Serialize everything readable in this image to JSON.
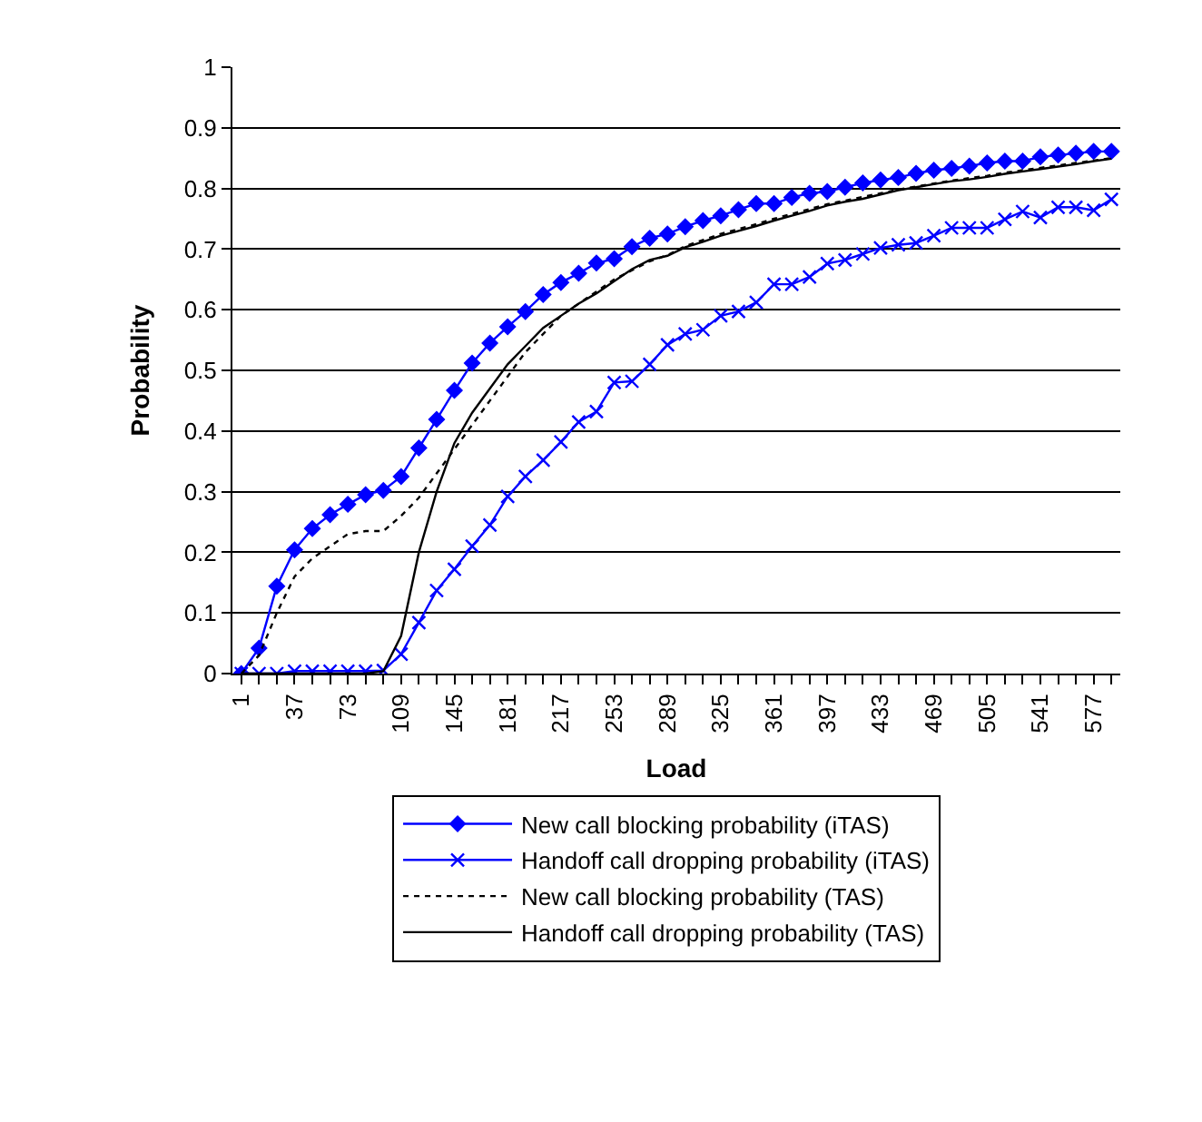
{
  "chart_data": {
    "type": "line",
    "xlabel": "Load",
    "ylabel": "Probability",
    "categories": [
      "1",
      null,
      null,
      "37",
      null,
      null,
      "73",
      null,
      null,
      "109",
      null,
      null,
      "145",
      null,
      null,
      "181",
      null,
      null,
      "217",
      null,
      null,
      "253",
      null,
      null,
      "289",
      null,
      null,
      "325",
      null,
      null,
      "361",
      null,
      null,
      "397",
      null,
      null,
      "433",
      null,
      null,
      "469",
      null,
      null,
      "505",
      null,
      null,
      "541",
      null,
      null,
      "577",
      null
    ],
    "ylim": [
      0,
      1
    ],
    "yticks": [
      0,
      0.1,
      0.2,
      0.3,
      0.4,
      0.5,
      0.6,
      0.7,
      0.8,
      0.9,
      1
    ],
    "grid": "y",
    "legend": "bottom",
    "series": [
      {
        "name": "New call blocking probability (iTAS)",
        "color": "#0000ff",
        "marker": "diamond",
        "line_style": "solid",
        "values": [
          0,
          0.042,
          0.144,
          0.204,
          0.239,
          0.262,
          0.279,
          0.295,
          0.302,
          0.325,
          0.372,
          0.419,
          0.467,
          0.512,
          0.545,
          0.572,
          0.597,
          0.625,
          0.645,
          0.66,
          0.677,
          0.684,
          0.704,
          0.718,
          0.725,
          0.737,
          0.747,
          0.755,
          0.765,
          0.775,
          0.775,
          0.785,
          0.792,
          0.795,
          0.802,
          0.809,
          0.814,
          0.818,
          0.825,
          0.83,
          0.833,
          0.837,
          0.842,
          0.845,
          0.845,
          0.852,
          0.855,
          0.858,
          0.861,
          0.861
        ]
      },
      {
        "name": "Handoff call dropping probability (iTAS)",
        "color": "#0000ff",
        "marker": "cross",
        "line_style": "solid",
        "values": [
          0,
          0,
          0,
          0.004,
          0.004,
          0.004,
          0.004,
          0.004,
          0.005,
          0.032,
          0.084,
          0.137,
          0.172,
          0.21,
          0.245,
          0.292,
          0.325,
          0.352,
          0.382,
          0.415,
          0.432,
          0.48,
          0.482,
          0.51,
          0.542,
          0.56,
          0.567,
          0.59,
          0.597,
          0.612,
          0.642,
          0.642,
          0.654,
          0.676,
          0.682,
          0.692,
          0.702,
          0.707,
          0.71,
          0.722,
          0.735,
          0.735,
          0.735,
          0.749,
          0.762,
          0.752,
          0.769,
          0.769,
          0.764,
          0.782
        ]
      },
      {
        "name": "New call blocking probability (TAS)",
        "color": "#000000",
        "marker": "none",
        "line_style": "dotted",
        "values": [
          0,
          0.03,
          0.1,
          0.16,
          0.19,
          0.21,
          0.23,
          0.235,
          0.235,
          0.26,
          0.29,
          0.33,
          0.37,
          0.41,
          0.45,
          0.49,
          0.53,
          0.56,
          0.59,
          0.61,
          0.63,
          0.65,
          0.665,
          0.68,
          0.69,
          0.705,
          0.715,
          0.725,
          0.733,
          0.741,
          0.75,
          0.758,
          0.766,
          0.774,
          0.78,
          0.786,
          0.792,
          0.798,
          0.803,
          0.808,
          0.813,
          0.817,
          0.821,
          0.826,
          0.83,
          0.834,
          0.838,
          0.842,
          0.846,
          0.85
        ]
      },
      {
        "name": "Handoff call dropping probability (TAS)",
        "color": "#000000",
        "marker": "none",
        "line_style": "solid",
        "values": [
          0,
          0,
          0,
          0,
          0,
          0,
          0,
          0,
          0.004,
          0.062,
          0.2,
          0.3,
          0.38,
          0.43,
          0.47,
          0.51,
          0.54,
          0.57,
          0.59,
          0.61,
          0.627,
          0.647,
          0.667,
          0.682,
          0.689,
          0.703,
          0.712,
          0.722,
          0.73,
          0.738,
          0.747,
          0.755,
          0.763,
          0.772,
          0.778,
          0.783,
          0.79,
          0.797,
          0.802,
          0.807,
          0.812,
          0.815,
          0.819,
          0.824,
          0.828,
          0.832,
          0.836,
          0.84,
          0.845,
          0.849
        ]
      }
    ]
  }
}
